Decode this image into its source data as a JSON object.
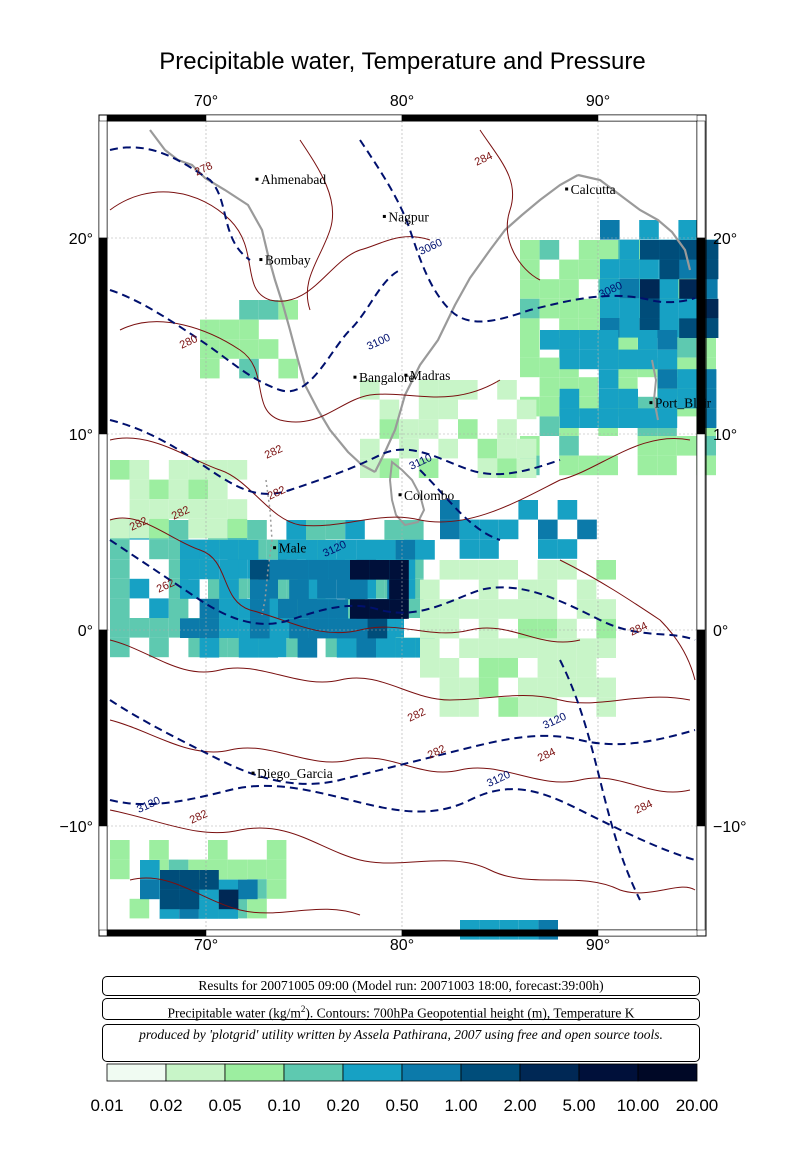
{
  "title": "Precipitable water, Temperature and Pressure",
  "axes": {
    "lon_ticks": [
      "70°",
      "80°",
      "90°"
    ],
    "lat_ticks": [
      "20°",
      "10°",
      "0°",
      "−10°"
    ]
  },
  "cities": [
    {
      "name": "Ahmenabad",
      "lon": 72.6,
      "lat": 23.0
    },
    {
      "name": "Calcutta",
      "lon": 88.4,
      "lat": 22.5
    },
    {
      "name": "Nagpur",
      "lon": 79.1,
      "lat": 21.1
    },
    {
      "name": "Bombay",
      "lon": 72.8,
      "lat": 18.9
    },
    {
      "name": "Bangalore",
      "lon": 77.6,
      "lat": 12.9
    },
    {
      "name": "Madras",
      "lon": 80.2,
      "lat": 13.0
    },
    {
      "name": "Port_Blair",
      "lon": 92.7,
      "lat": 11.6
    },
    {
      "name": "Colombo",
      "lon": 79.9,
      "lat": 6.9
    },
    {
      "name": "Male",
      "lon": 73.5,
      "lat": 4.2
    },
    {
      "name": "Diego_Garcia",
      "lon": 72.4,
      "lat": -7.3
    }
  ],
  "contour_labels": [
    "278",
    "284",
    "3060",
    "3080",
    "280",
    "3100",
    "282",
    "3110",
    "282",
    "282",
    "282",
    "3120",
    "262",
    "284",
    "282",
    "3120",
    "282",
    "284",
    "3120",
    "3130",
    "282",
    "284"
  ],
  "info": {
    "line1": "Results for 20071005 09:00 (Model run: 20071003 18:00, forecast:39:00h)",
    "line2_prefix": "Precipitable water (kg/m",
    "line2_sup": "2",
    "line2_suffix": ").  Contours: 700hPa Geopotential height (m), Temperature K",
    "line3": "produced by 'plotgrid' utility written by Assela Pathirana, 2007 using free and open source tools."
  },
  "legend": {
    "labels": [
      "0.01",
      "0.02",
      "0.05",
      "0.10",
      "0.20",
      "0.50",
      "1.00",
      "2.00",
      "5.00",
      "10.00",
      "20.00"
    ],
    "colors": [
      "#f0fbf2",
      "#c8f5c8",
      "#9ceea0",
      "#5ec9b0",
      "#17a1c4",
      "#0c7aaa",
      "#004d7a",
      "#002855",
      "#00103a",
      "#000826"
    ]
  },
  "field_colors": {
    "land": "#9a9a9a",
    "temp_contour": "#7a1010",
    "height_contour": "#00106e"
  }
}
